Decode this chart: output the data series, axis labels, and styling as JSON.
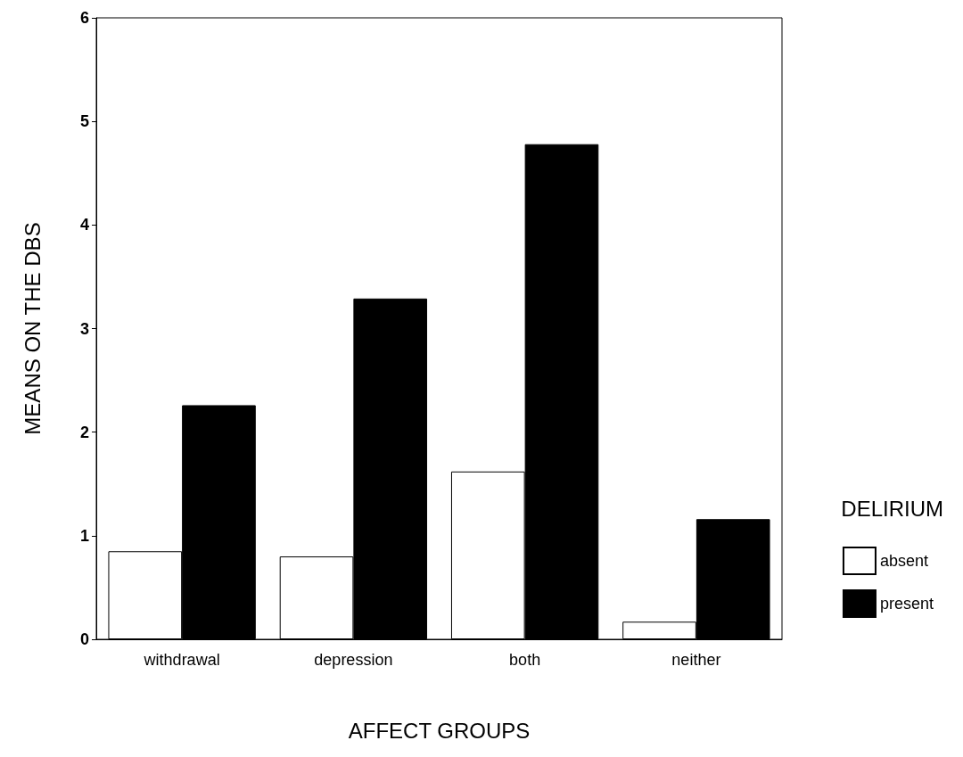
{
  "chart_data": {
    "type": "bar",
    "xlabel": "AFFECT GROUPS",
    "ylabel": "MEANS ON THE DBS",
    "legend_title": "DELIRIUM",
    "categories": [
      "withdrawal",
      "depression",
      "both",
      "neither"
    ],
    "series": [
      {
        "name": "absent",
        "color": "#ffffff",
        "values": [
          0.85,
          0.8,
          1.62,
          0.17
        ]
      },
      {
        "name": "present",
        "color": "#000000",
        "values": [
          2.26,
          3.29,
          4.78,
          1.16
        ]
      }
    ],
    "ylim": [
      0,
      6
    ],
    "yticks": [
      0,
      1,
      2,
      3,
      4,
      5,
      6
    ],
    "grid": false,
    "legend": "right"
  }
}
